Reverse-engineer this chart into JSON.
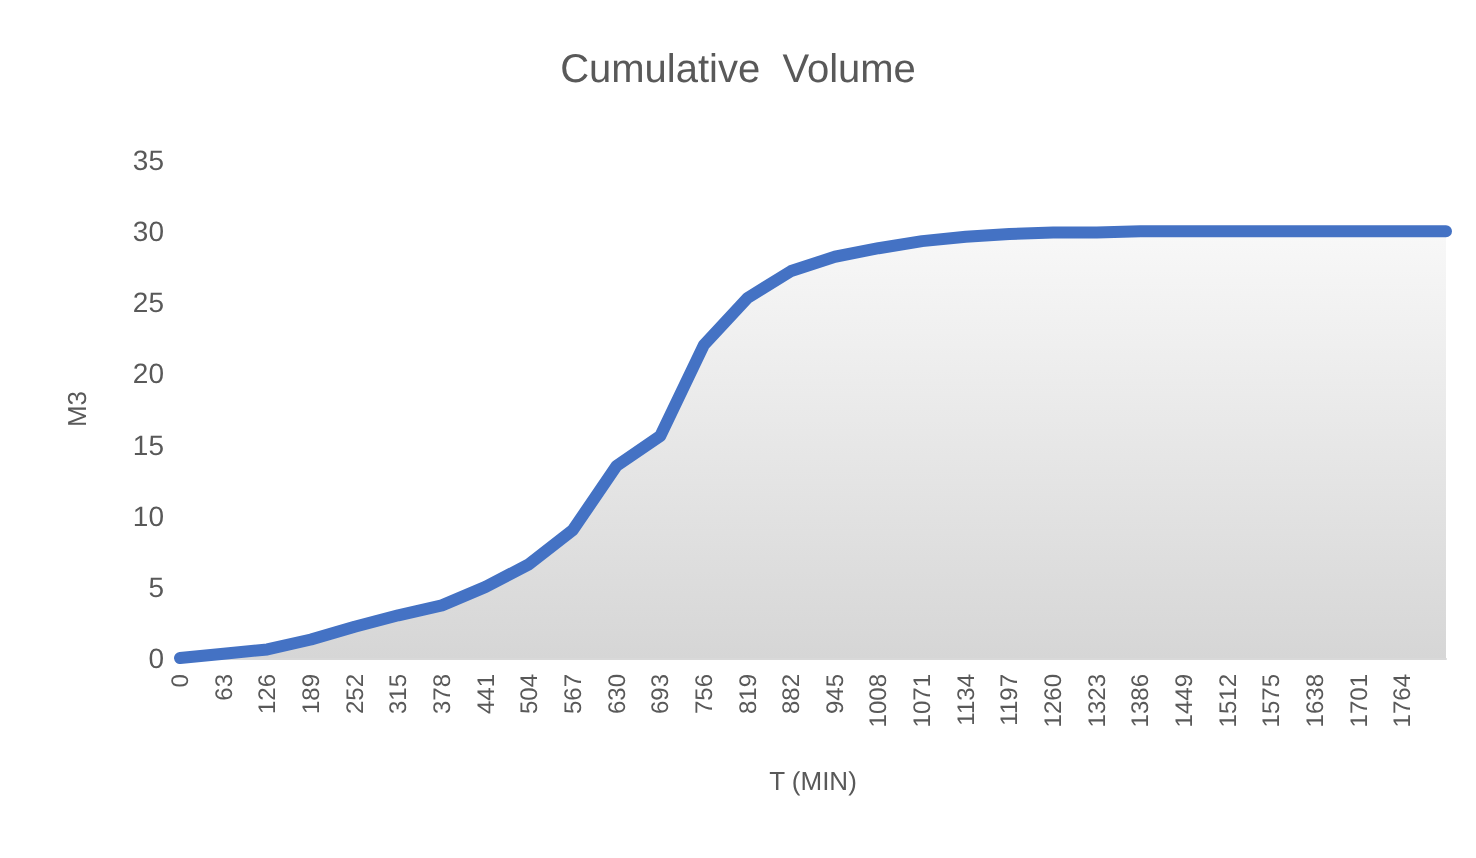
{
  "chart_data": {
    "type": "area",
    "title": "Cumulative  Volume",
    "xlabel": "T (MIN)",
    "ylabel": "M3",
    "categories": [
      "0",
      "63",
      "126",
      "189",
      "252",
      "315",
      "378",
      "441",
      "504",
      "567",
      "630",
      "693",
      "756",
      "819",
      "882",
      "945",
      "1008",
      "1071",
      "1134",
      "1197",
      "1260",
      "1323",
      "1386",
      "1449",
      "1512",
      "1575",
      "1638",
      "1701",
      "1764",
      null
    ],
    "series": [
      {
        "color": "#4472c4",
        "values": [
          0,
          0.3,
          0.6,
          1.3,
          2.2,
          3.0,
          3.7,
          5.0,
          6.6,
          9.0,
          13.5,
          15.6,
          22.0,
          25.3,
          27.2,
          28.2,
          28.8,
          29.3,
          29.6,
          29.8,
          29.9,
          29.9,
          30,
          30,
          30,
          30,
          30,
          30,
          30,
          30
        ]
      }
    ],
    "ylim": [
      0,
      35
    ],
    "yticks": [
      0,
      5,
      10,
      15,
      20,
      25,
      30,
      35
    ],
    "grid": false,
    "marker": "none"
  }
}
